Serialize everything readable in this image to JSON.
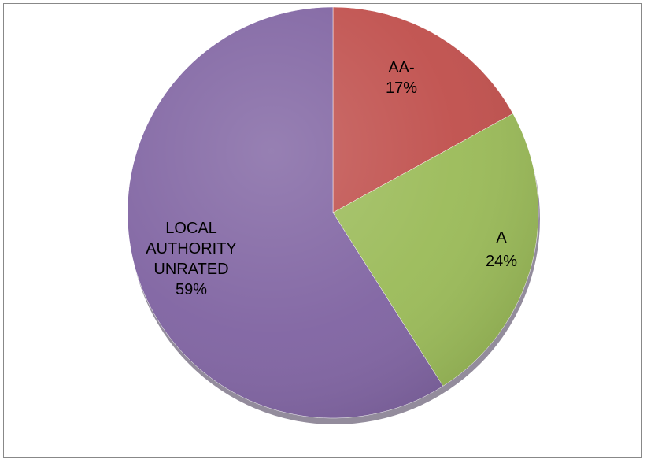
{
  "chart_data": {
    "type": "pie",
    "title": "",
    "slices": [
      {
        "label": "AA-",
        "percent_label": "17%",
        "value": 17,
        "color": "#C0504D",
        "label_lines": [
          "AA-",
          "17%"
        ]
      },
      {
        "label": "A",
        "percent_label": "24%",
        "value": 24,
        "color": "#9BBB59",
        "label_lines": [
          "A",
          "24%"
        ]
      },
      {
        "label": "LOCAL AUTHORITY UNRATED",
        "percent_label": "59%",
        "value": 59,
        "color": "#8064A2",
        "label_lines": [
          "LOCAL",
          "AUTHORITY",
          "UNRATED",
          "59%"
        ]
      }
    ],
    "legend": "none"
  }
}
